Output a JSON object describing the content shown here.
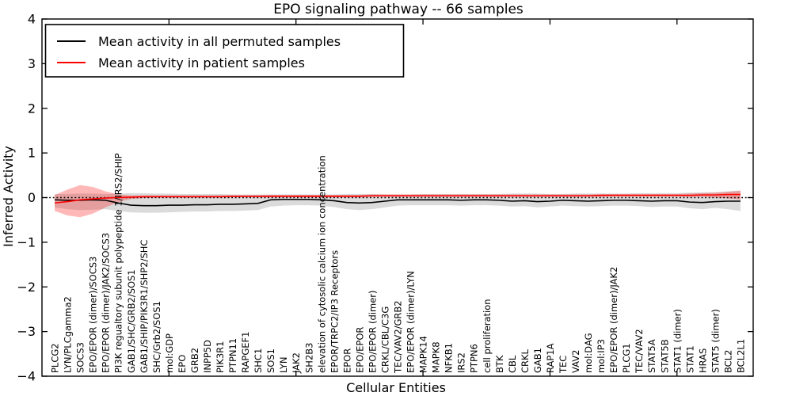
{
  "chart_data": {
    "type": "line",
    "title": "EPO signaling pathway -- 66 samples",
    "xlabel": "Cellular Entities",
    "ylabel": "Inferred Activity",
    "ylim": [
      -4,
      4
    ],
    "xlim": [
      0,
      56
    ],
    "grid": false,
    "legend_position": "upper left",
    "xticks": [
      10,
      20,
      30,
      40,
      50
    ],
    "yticks": [
      {
        "value": -4,
        "label": "−4"
      },
      {
        "value": -3,
        "label": "−3"
      },
      {
        "value": -2,
        "label": "−2"
      },
      {
        "value": -1,
        "label": "−1"
      },
      {
        "value": 0,
        "label": "0"
      },
      {
        "value": 1,
        "label": "1"
      },
      {
        "value": 2,
        "label": "2"
      },
      {
        "value": 3,
        "label": "3"
      },
      {
        "value": 4,
        "label": "4"
      }
    ],
    "zero_reference_line": {
      "y": 0,
      "style": "dotted",
      "color": "#000000"
    },
    "categories": [
      "PLCG2",
      "LYN/PLCgamma2",
      "SOCS3",
      "EPO/EPOR (dimer)/SOCS3",
      "EPO/EPOR (dimer)/JAK2/SOCS3",
      "PI3K regualtory subunit polypeptide 1/IRS2/SHIP",
      "GAB1/SHC/GRB2/SOS1",
      "GAB1/SHIP/PIK3R1/SHP2/SHC",
      "SHC/Grb2/SOS1",
      "mol:GDP",
      "EPO",
      "GRB2",
      "INPP5D",
      "PIK3R1",
      "PTPN11",
      "RAPGEF1",
      "SHC1",
      "SOS1",
      "LYN",
      "JAK2",
      "SH2B3",
      "elevation of cytosolic calcium ion concentration",
      "EPOR/TRPC2/IP3 Receptors",
      "EPOR",
      "EPO/EPOR",
      "EPO/EPOR (dimer)",
      "CRKL/CBL/C3G",
      "TEC/VAV2/GRB2",
      "EPO/EPOR (dimer)/LYN",
      "MAPK14",
      "MAPK8",
      "NFKB1",
      "IRS2",
      "PTPN6",
      "cell proliferation",
      "BTK",
      "CBL",
      "CRKL",
      "GAB1",
      "RAP1A",
      "TEC",
      "VAV2",
      "mol:DAG",
      "mol:IP3",
      "EPO/EPOR (dimer)/JAK2",
      "PLCG1",
      "TEC/VAV2",
      "STAT5A",
      "STAT5B",
      "STAT1 (dimer)",
      "STAT1",
      "HRAS",
      "STAT5 (dimer)",
      "BCL2",
      "BCL2L1"
    ],
    "series": [
      {
        "name": "Mean activity in all permuted samples",
        "color": "#000000",
        "values": [
          -0.05,
          -0.06,
          -0.06,
          -0.05,
          -0.06,
          -0.12,
          -0.17,
          -0.18,
          -0.18,
          -0.17,
          -0.17,
          -0.16,
          -0.16,
          -0.15,
          -0.15,
          -0.14,
          -0.13,
          -0.05,
          -0.04,
          -0.04,
          -0.04,
          -0.05,
          -0.07,
          -0.11,
          -0.12,
          -0.11,
          -0.08,
          -0.05,
          -0.05,
          -0.05,
          -0.05,
          -0.05,
          -0.06,
          -0.05,
          -0.05,
          -0.06,
          -0.08,
          -0.07,
          -0.09,
          -0.08,
          -0.06,
          -0.07,
          -0.08,
          -0.07,
          -0.06,
          -0.06,
          -0.07,
          -0.08,
          -0.07,
          -0.07,
          -0.1,
          -0.11,
          -0.09,
          -0.08,
          -0.08
        ],
        "band": {
          "color": "#999999",
          "opacity": 0.35,
          "upper": [
            0.08,
            0.08,
            0.09,
            0.09,
            0.08,
            0.09,
            0.1,
            0.1,
            0.09,
            0.09,
            0.08,
            0.08,
            0.08,
            0.08,
            0.07,
            0.07,
            0.07,
            0.07,
            0.07,
            0.07,
            0.07,
            0.07,
            0.07,
            0.08,
            0.08,
            0.08,
            0.07,
            0.07,
            0.07,
            0.08,
            0.08,
            0.08,
            0.08,
            0.08,
            0.08,
            0.08,
            0.09,
            0.09,
            0.09,
            0.08,
            0.08,
            0.09,
            0.09,
            0.09,
            0.09,
            0.09,
            0.1,
            0.1,
            0.1,
            0.1,
            0.11,
            0.12,
            0.12,
            0.14,
            0.16
          ],
          "lower": [
            -0.22,
            -0.26,
            -0.28,
            -0.27,
            -0.26,
            -0.3,
            -0.33,
            -0.34,
            -0.34,
            -0.33,
            -0.32,
            -0.31,
            -0.31,
            -0.3,
            -0.3,
            -0.29,
            -0.28,
            -0.2,
            -0.18,
            -0.17,
            -0.17,
            -0.18,
            -0.21,
            -0.26,
            -0.28,
            -0.26,
            -0.22,
            -0.18,
            -0.17,
            -0.17,
            -0.17,
            -0.17,
            -0.18,
            -0.17,
            -0.17,
            -0.18,
            -0.2,
            -0.19,
            -0.22,
            -0.2,
            -0.18,
            -0.19,
            -0.2,
            -0.19,
            -0.18,
            -0.18,
            -0.19,
            -0.21,
            -0.2,
            -0.2,
            -0.24,
            -0.26,
            -0.23,
            -0.26,
            -0.3
          ]
        }
      },
      {
        "name": "Mean activity in patient samples",
        "color": "#ff0000",
        "values": [
          -0.12,
          -0.09,
          -0.05,
          -0.03,
          -0.01,
          0.0,
          0.01,
          0.02,
          0.02,
          0.02,
          0.02,
          0.02,
          0.02,
          0.02,
          0.03,
          0.03,
          0.03,
          0.03,
          0.03,
          0.03,
          0.03,
          0.03,
          0.03,
          0.03,
          0.03,
          0.04,
          0.04,
          0.04,
          0.04,
          0.04,
          0.04,
          0.04,
          0.04,
          0.04,
          0.04,
          0.04,
          0.04,
          0.04,
          0.04,
          0.04,
          0.04,
          0.04,
          0.04,
          0.05,
          0.05,
          0.05,
          0.05,
          0.05,
          0.05,
          0.05,
          0.05,
          0.06,
          0.06,
          0.07,
          0.07
        ],
        "band": {
          "color": "#ff0000",
          "opacity": 0.28,
          "upper": [
            0.06,
            0.18,
            0.28,
            0.24,
            0.14,
            0.07,
            0.05,
            0.05,
            0.05,
            0.05,
            0.05,
            0.05,
            0.05,
            0.05,
            0.05,
            0.05,
            0.05,
            0.06,
            0.06,
            0.06,
            0.06,
            0.06,
            0.06,
            0.06,
            0.06,
            0.07,
            0.07,
            0.07,
            0.07,
            0.07,
            0.07,
            0.07,
            0.07,
            0.07,
            0.07,
            0.07,
            0.07,
            0.07,
            0.07,
            0.07,
            0.07,
            0.07,
            0.07,
            0.08,
            0.08,
            0.08,
            0.08,
            0.08,
            0.08,
            0.08,
            0.09,
            0.1,
            0.11,
            0.13,
            0.15
          ],
          "lower": [
            -0.3,
            -0.4,
            -0.44,
            -0.36,
            -0.22,
            -0.1,
            -0.03,
            -0.01,
            0.0,
            0.0,
            0.0,
            0.0,
            0.0,
            0.0,
            0.01,
            0.01,
            0.01,
            0.01,
            0.01,
            0.01,
            0.01,
            0.01,
            0.01,
            0.01,
            0.01,
            0.02,
            0.02,
            0.02,
            0.02,
            0.02,
            0.02,
            0.02,
            0.02,
            0.02,
            0.02,
            0.02,
            0.02,
            0.02,
            0.02,
            0.02,
            0.02,
            0.02,
            0.02,
            0.02,
            0.03,
            0.03,
            0.03,
            0.03,
            0.03,
            0.03,
            0.02,
            0.02,
            0.0,
            -0.02,
            -0.04
          ]
        }
      }
    ]
  }
}
